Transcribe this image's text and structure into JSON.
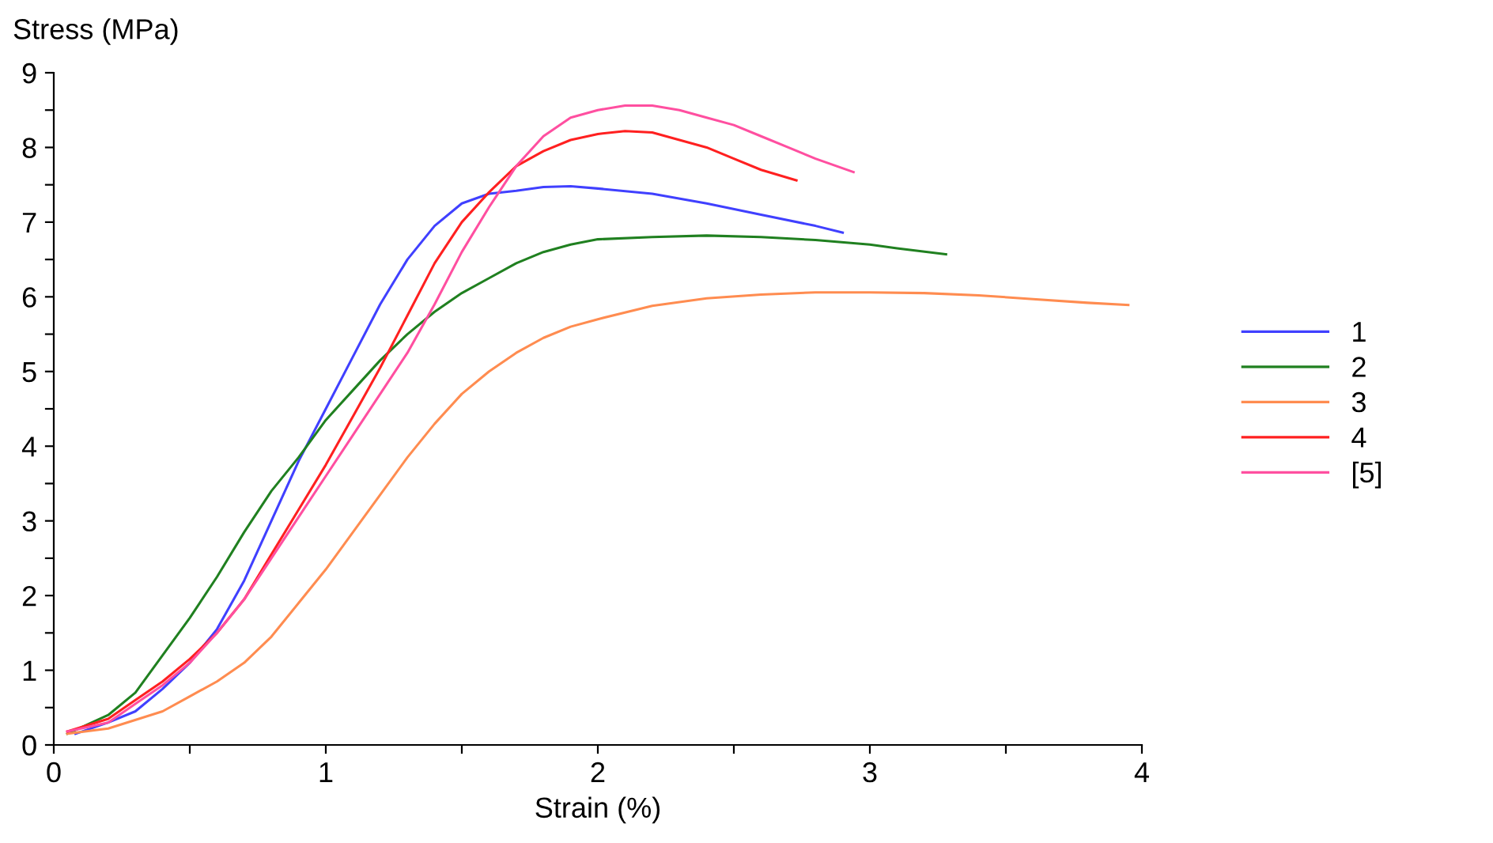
{
  "chart_data": {
    "type": "line",
    "xlabel": "Strain (%)",
    "ylabel": "Stress (MPa)",
    "xlim": [
      0,
      4
    ],
    "ylim": [
      0,
      9
    ],
    "xticks": [
      0,
      {
        "value": 0.5,
        "label": null
      },
      1,
      {
        "value": 1.5,
        "label": null
      },
      2,
      {
        "value": 2.5,
        "label": null
      },
      3,
      {
        "value": 3.5,
        "label": null
      },
      4
    ],
    "yticks": [
      0,
      {
        "value": 0.5,
        "label": null
      },
      1,
      {
        "value": 1.5,
        "label": null
      },
      2,
      {
        "value": 2.5,
        "label": null
      },
      3,
      {
        "value": 3.5,
        "label": null
      },
      4,
      {
        "value": 4.5,
        "label": null
      },
      5,
      {
        "value": 5.5,
        "label": null
      },
      6,
      {
        "value": 6.5,
        "label": null
      },
      7,
      {
        "value": 7.5,
        "label": null
      },
      8,
      {
        "value": 8.5,
        "label": null
      },
      9
    ],
    "grid": false,
    "legend": "right",
    "marker": "none",
    "line_style": "solid",
    "series": [
      {
        "name": "1",
        "color": "#4040ff",
        "x": [
          0.08,
          0.2,
          0.3,
          0.4,
          0.5,
          0.6,
          0.7,
          0.8,
          0.9,
          1.0,
          1.1,
          1.2,
          1.3,
          1.4,
          1.5,
          1.6,
          1.7,
          1.8,
          1.9,
          2.0,
          2.2,
          2.4,
          2.6,
          2.8,
          2.9
        ],
        "values": [
          0.15,
          0.3,
          0.45,
          0.75,
          1.1,
          1.55,
          2.2,
          3.0,
          3.8,
          4.5,
          5.2,
          5.9,
          6.5,
          6.95,
          7.25,
          7.38,
          7.42,
          7.47,
          7.48,
          7.45,
          7.38,
          7.25,
          7.1,
          6.95,
          6.86
        ]
      },
      {
        "name": "2",
        "color": "#208020",
        "x": [
          0.05,
          0.2,
          0.3,
          0.4,
          0.5,
          0.6,
          0.7,
          0.8,
          0.9,
          1.0,
          1.1,
          1.2,
          1.3,
          1.4,
          1.5,
          1.6,
          1.7,
          1.8,
          1.9,
          2.0,
          2.2,
          2.4,
          2.6,
          2.8,
          3.0,
          3.1,
          3.28
        ],
        "values": [
          0.15,
          0.4,
          0.7,
          1.2,
          1.7,
          2.25,
          2.85,
          3.4,
          3.85,
          4.35,
          4.75,
          5.15,
          5.5,
          5.8,
          6.05,
          6.25,
          6.45,
          6.6,
          6.7,
          6.77,
          6.8,
          6.82,
          6.8,
          6.76,
          6.7,
          6.65,
          6.57
        ]
      },
      {
        "name": "3",
        "color": "#ff8c50",
        "x": [
          0.05,
          0.2,
          0.4,
          0.5,
          0.6,
          0.7,
          0.8,
          0.9,
          1.0,
          1.1,
          1.2,
          1.3,
          1.4,
          1.5,
          1.6,
          1.7,
          1.8,
          1.9,
          2.0,
          2.2,
          2.4,
          2.6,
          2.8,
          3.0,
          3.2,
          3.4,
          3.6,
          3.8,
          3.95
        ],
        "values": [
          0.15,
          0.22,
          0.45,
          0.65,
          0.85,
          1.1,
          1.45,
          1.9,
          2.35,
          2.85,
          3.35,
          3.85,
          4.3,
          4.7,
          5.0,
          5.25,
          5.45,
          5.6,
          5.7,
          5.88,
          5.98,
          6.03,
          6.06,
          6.06,
          6.05,
          6.02,
          5.97,
          5.92,
          5.89
        ]
      },
      {
        "name": "4",
        "color": "#ff2020",
        "x": [
          0.05,
          0.2,
          0.3,
          0.4,
          0.5,
          0.6,
          0.7,
          0.8,
          0.9,
          1.0,
          1.1,
          1.2,
          1.3,
          1.4,
          1.5,
          1.6,
          1.7,
          1.8,
          1.9,
          2.0,
          2.1,
          2.2,
          2.3,
          2.4,
          2.5,
          2.6,
          2.73
        ],
        "values": [
          0.18,
          0.35,
          0.6,
          0.85,
          1.15,
          1.5,
          1.95,
          2.55,
          3.15,
          3.75,
          4.4,
          5.05,
          5.75,
          6.45,
          7.0,
          7.4,
          7.75,
          7.95,
          8.1,
          8.18,
          8.22,
          8.2,
          8.1,
          8.0,
          7.85,
          7.7,
          7.56
        ]
      },
      {
        "name": "[5]",
        "color": "#ff4fa0",
        "x": [
          0.05,
          0.2,
          0.3,
          0.4,
          0.5,
          0.6,
          0.7,
          0.8,
          0.9,
          1.0,
          1.1,
          1.2,
          1.3,
          1.4,
          1.5,
          1.6,
          1.7,
          1.8,
          1.9,
          2.0,
          2.1,
          2.2,
          2.3,
          2.4,
          2.5,
          2.6,
          2.7,
          2.8,
          2.94
        ],
        "values": [
          0.18,
          0.3,
          0.55,
          0.8,
          1.1,
          1.5,
          1.95,
          2.5,
          3.05,
          3.6,
          4.15,
          4.7,
          5.25,
          5.9,
          6.6,
          7.2,
          7.75,
          8.15,
          8.4,
          8.5,
          8.56,
          8.56,
          8.5,
          8.4,
          8.3,
          8.15,
          8.0,
          7.85,
          7.67
        ]
      }
    ]
  }
}
